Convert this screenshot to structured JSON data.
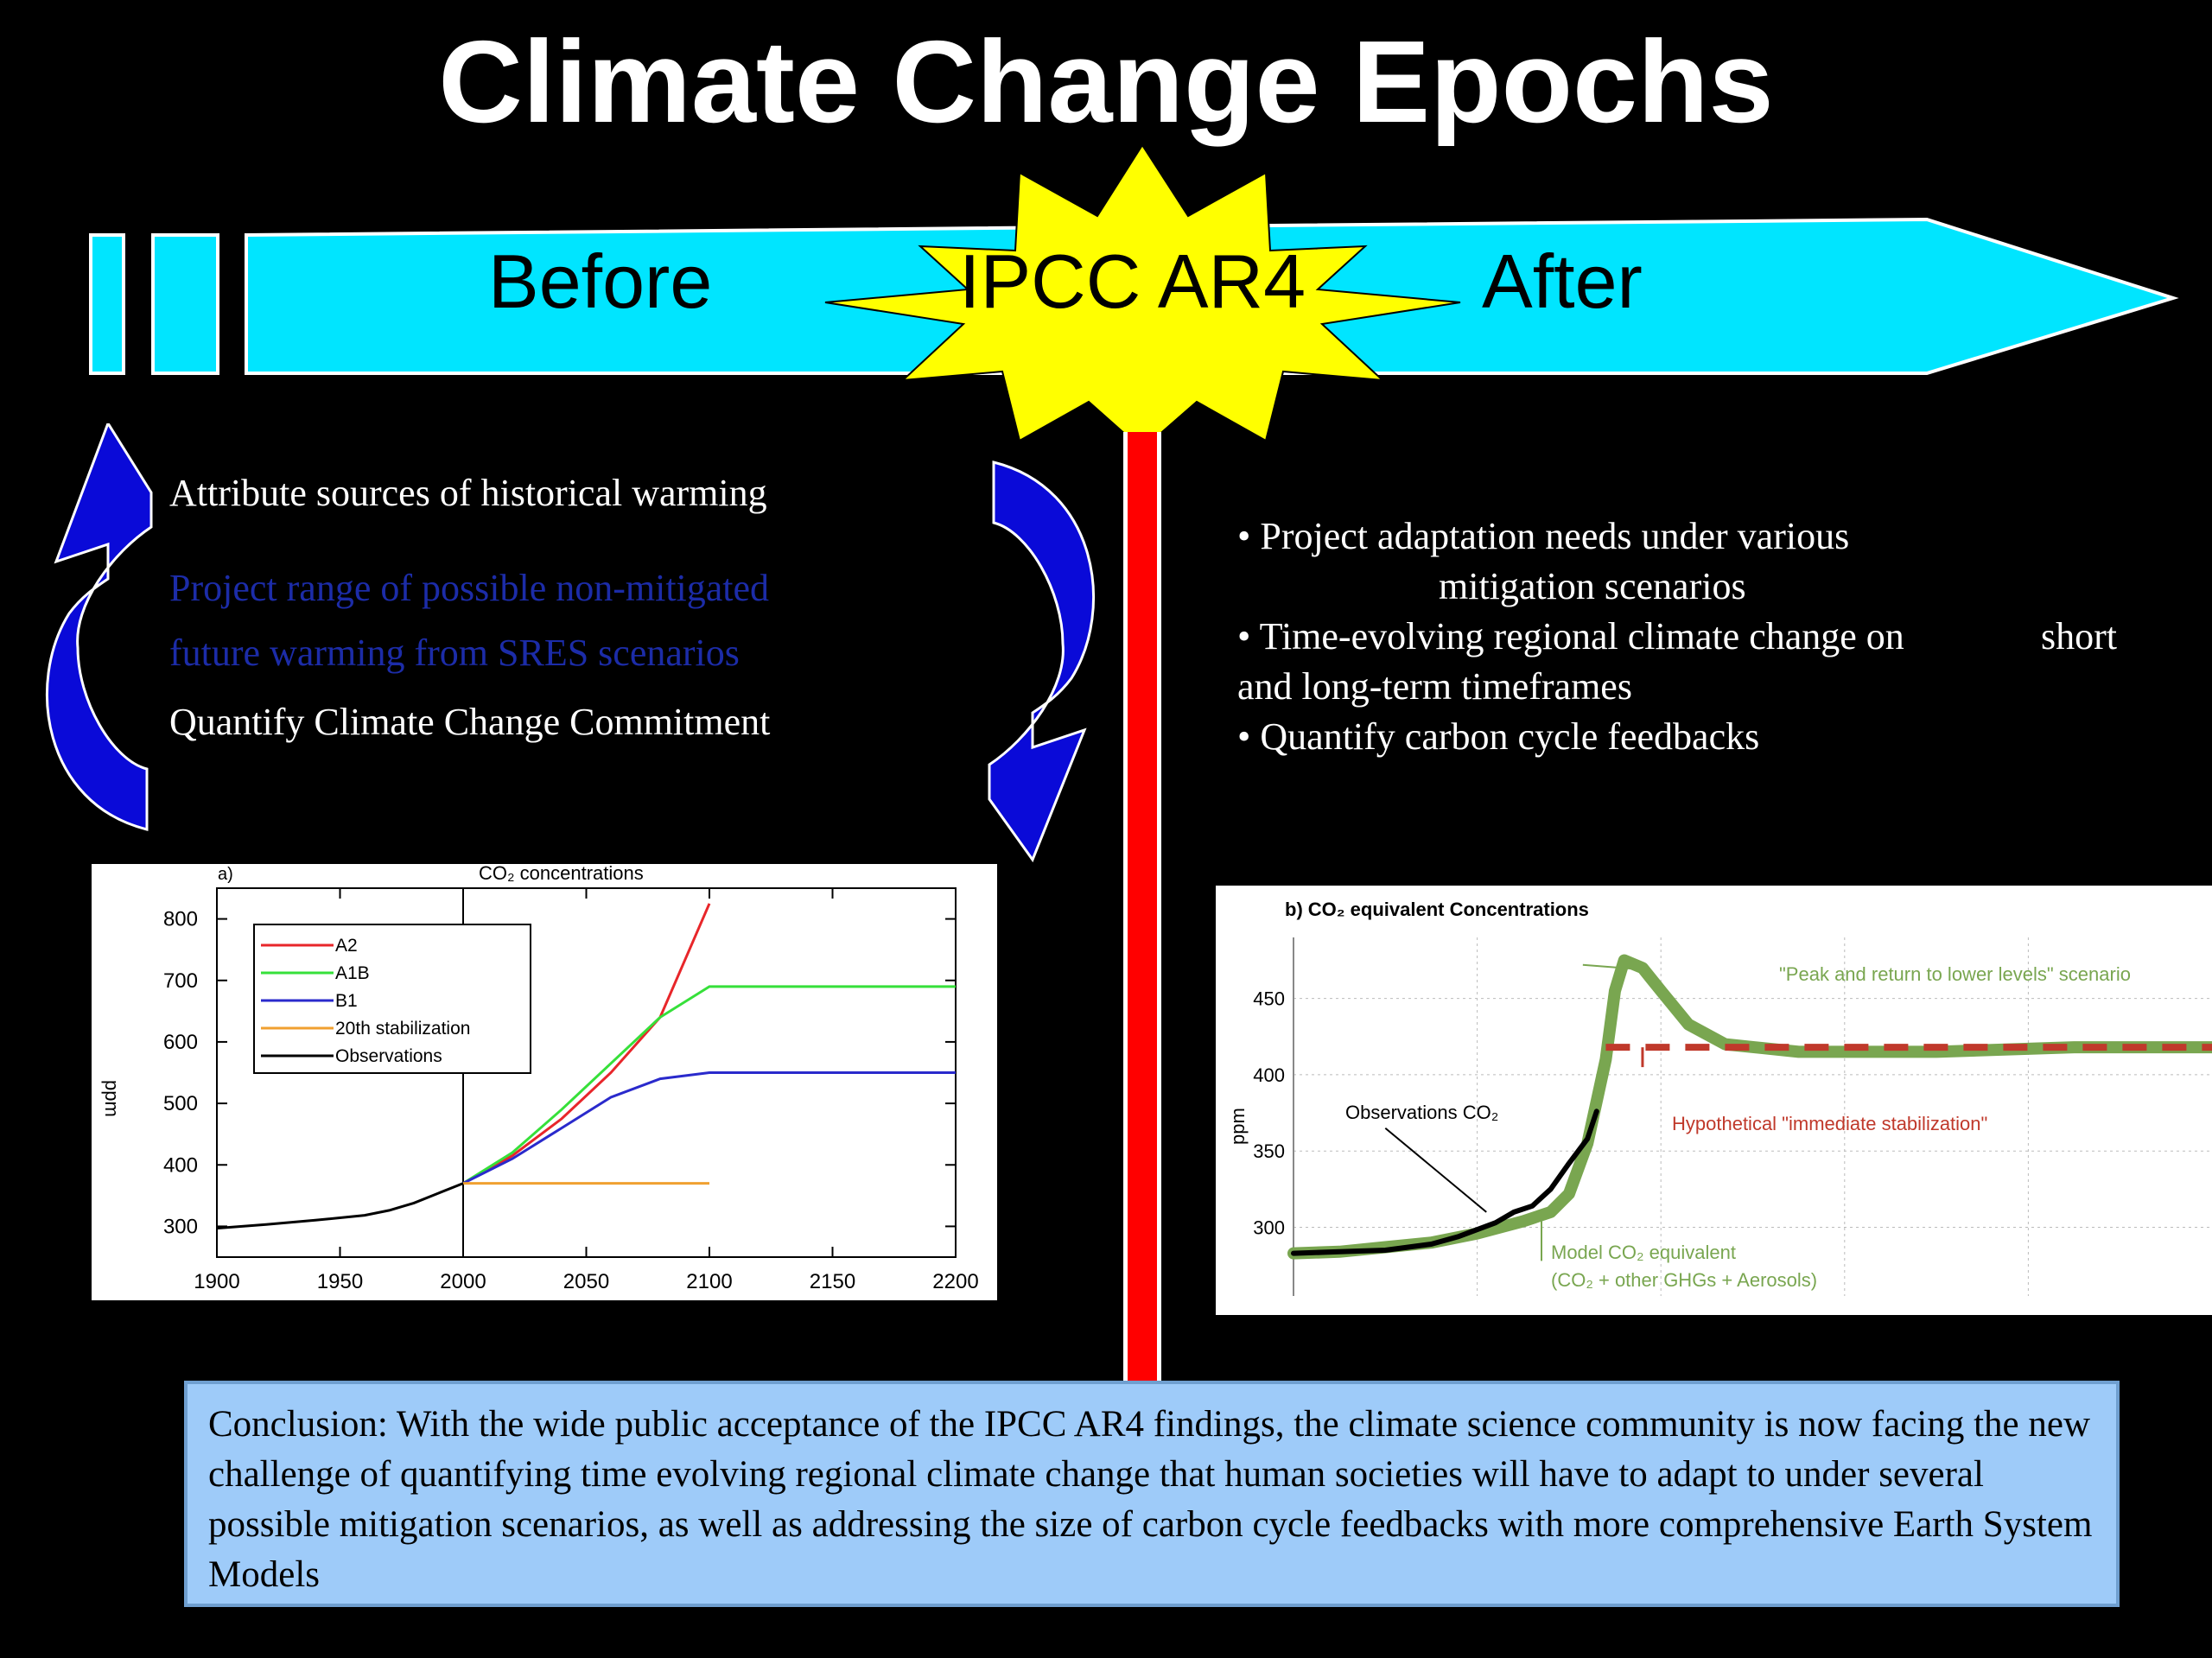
{
  "title": "Climate Change Epochs",
  "timeline": {
    "before_label": "Before",
    "center_label": "IPCC AR4",
    "after_label": "After"
  },
  "left_items": [
    {
      "text": "Attribute sources of historical warming",
      "color": "#ffffff"
    },
    {
      "text": "Project range of possible non-mitigated",
      "color": "#1c2ca8"
    },
    {
      "text": "future warming from SRES scenarios",
      "color": "#1c2ca8"
    },
    {
      "text": "Quantify Climate Change Commitment",
      "color": "#ffffff"
    }
  ],
  "right_items": [
    {
      "text": "• Project adaptation needs under various",
      "color": "#ffffff"
    },
    {
      "text": "mitigation scenarios",
      "color": "#ffffff"
    },
    {
      "text": "• Time-evolving regional climate change on",
      "color": "#1c2ca8"
    },
    {
      "text": "short",
      "color": "#1c2ca8"
    },
    {
      "text": "and long-term timeframes",
      "color": "#1c2ca8"
    },
    {
      "text": "• Quantify carbon cycle feedbacks",
      "color": "#ffffff"
    }
  ],
  "conclusion": "Conclusion: With the wide public acceptance of the IPCC AR4 findings, the climate science community is now facing the new challenge of quantifying time evolving regional climate change that human societies will have to adapt to under several possible mitigation scenarios, as well as addressing the size of carbon cycle feedbacks with more comprehensive Earth System Models",
  "colors": {
    "arrow": "#00e5ff",
    "burst": "#ffff00",
    "divider": "#ff0000",
    "conclusion_bg": "#9ecbf9",
    "curved_arrow": "#0a0ad8"
  },
  "chart_data": [
    {
      "type": "line",
      "panel_label": "a)",
      "title": "CO₂ concentrations",
      "xlabel": "",
      "ylabel": "ppm",
      "xlim": [
        1900,
        2200
      ],
      "ylim": [
        250,
        850
      ],
      "xticks": [
        1900,
        1950,
        2000,
        2050,
        2100,
        2150,
        2200
      ],
      "yticks": [
        300,
        400,
        500,
        600,
        700,
        800
      ],
      "series": [
        {
          "name": "A2",
          "color": "#e8262a",
          "points": [
            [
              2000,
              370
            ],
            [
              2020,
              415
            ],
            [
              2040,
              475
            ],
            [
              2060,
              550
            ],
            [
              2080,
              640
            ],
            [
              2100,
              825
            ]
          ]
        },
        {
          "name": "A1B",
          "color": "#36e03a",
          "points": [
            [
              2000,
              370
            ],
            [
              2020,
              420
            ],
            [
              2040,
              490
            ],
            [
              2060,
              565
            ],
            [
              2080,
              640
            ],
            [
              2100,
              690
            ],
            [
              2200,
              690
            ]
          ]
        },
        {
          "name": "B1",
          "color": "#2a2acc",
          "points": [
            [
              2000,
              370
            ],
            [
              2020,
              410
            ],
            [
              2040,
              460
            ],
            [
              2060,
              510
            ],
            [
              2080,
              540
            ],
            [
              2100,
              550
            ],
            [
              2200,
              550
            ]
          ]
        },
        {
          "name": "20th stabilization",
          "color": "#f0a030",
          "points": [
            [
              2000,
              370
            ],
            [
              2100,
              370
            ]
          ]
        },
        {
          "name": "Observations",
          "color": "#000000",
          "points": [
            [
              1900,
              297
            ],
            [
              1920,
              303
            ],
            [
              1940,
              310
            ],
            [
              1960,
              318
            ],
            [
              1970,
              326
            ],
            [
              1980,
              338
            ],
            [
              1990,
              354
            ],
            [
              2000,
              370
            ]
          ]
        }
      ]
    },
    {
      "type": "line",
      "panel_label": "b)",
      "title": "CO₂ equivalent Concentrations",
      "ylabel": "ppm",
      "ylim": [
        255,
        490
      ],
      "yticks": [
        300,
        350,
        400,
        450
      ],
      "series": [
        {
          "name": "Model CO₂ equivalent (CO₂ + other GHGs + Aerosols)",
          "color": "#79a650",
          "points": [
            [
              0,
              283
            ],
            [
              5,
              284
            ],
            [
              10,
              287
            ],
            [
              15,
              290
            ],
            [
              20,
              296
            ],
            [
              25,
              304
            ],
            [
              28,
              310
            ],
            [
              30,
              322
            ],
            [
              32,
              355
            ],
            [
              34,
              410
            ],
            [
              35,
              455
            ],
            [
              36,
              475
            ],
            [
              38,
              470
            ],
            [
              40,
              455
            ],
            [
              43,
              433
            ],
            [
              47,
              420
            ],
            [
              55,
              415
            ],
            [
              70,
              415
            ],
            [
              85,
              418
            ],
            [
              100,
              418
            ]
          ]
        },
        {
          "name": "Observations CO₂",
          "color": "#000000",
          "points": [
            [
              0,
              283
            ],
            [
              5,
              284
            ],
            [
              10,
              285
            ],
            [
              15,
              289
            ],
            [
              18,
              294
            ],
            [
              22,
              303
            ],
            [
              24,
              310
            ],
            [
              26,
              314
            ],
            [
              28,
              325
            ],
            [
              30,
              342
            ],
            [
              32,
              358
            ],
            [
              33,
              376
            ]
          ]
        },
        {
          "name": "Hypothetical \"immediate stabilization\"",
          "color": "#c0392b",
          "points": [
            [
              34,
              418
            ],
            [
              100,
              418
            ]
          ]
        }
      ],
      "annotations": [
        "\"Peak and return to lower levels\" scenario",
        "Observations CO₂",
        "Hypothetical \"immediate stabilization\"",
        "Model CO₂ equivalent",
        "(CO₂ + other GHGs + Aerosols)"
      ]
    }
  ]
}
